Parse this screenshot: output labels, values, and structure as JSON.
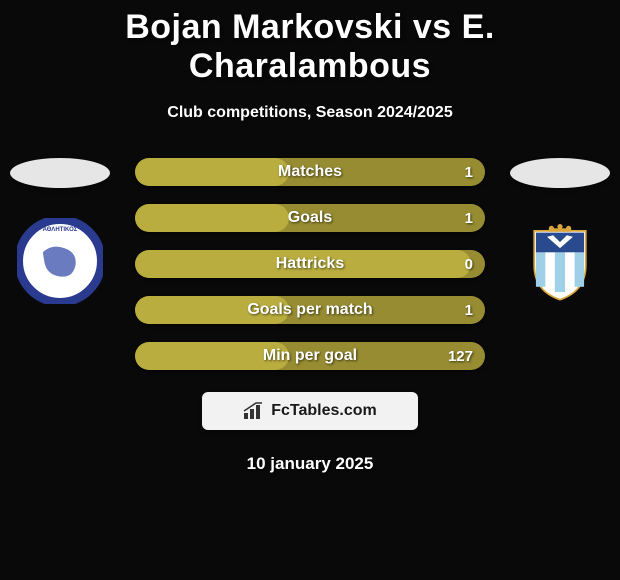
{
  "background_color": "#0a0909",
  "title": "Bojan Markovski vs E. Charalambous",
  "title_color": "#ffffff",
  "title_fontsize": 34,
  "subtitle": "Club competitions, Season 2024/2025",
  "subtitle_fontsize": 16,
  "date": "10 january 2025",
  "ellipse_left_color": "#e6e6e6",
  "ellipse_right_color": "#e6e6e6",
  "stat_track_color": "#978c32",
  "stat_fill_color": "#b9ad3f",
  "brand_bg": "#f2f2f2",
  "brand_text": "FcTables.com",
  "stats": [
    {
      "label": "Matches",
      "left_val": "",
      "right_val": "1",
      "fill_pct": 44
    },
    {
      "label": "Goals",
      "left_val": "",
      "right_val": "1",
      "fill_pct": 44
    },
    {
      "label": "Hattricks",
      "left_val": "",
      "right_val": "0",
      "fill_pct": 96
    },
    {
      "label": "Goals per match",
      "left_val": "",
      "right_val": "1",
      "fill_pct": 44
    },
    {
      "label": "Min per goal",
      "left_val": "",
      "right_val": "127",
      "fill_pct": 44
    }
  ],
  "club_left": {
    "ring_color": "#2a3a8f",
    "inner_color": "#ffffff",
    "map_color": "#6b7bbf"
  },
  "club_right": {
    "shield_top": "#2a4a8f",
    "shield_stripe_light": "#9fd0e8",
    "shield_stripe_white": "#ffffff",
    "crown_color": "#d9a63e"
  }
}
